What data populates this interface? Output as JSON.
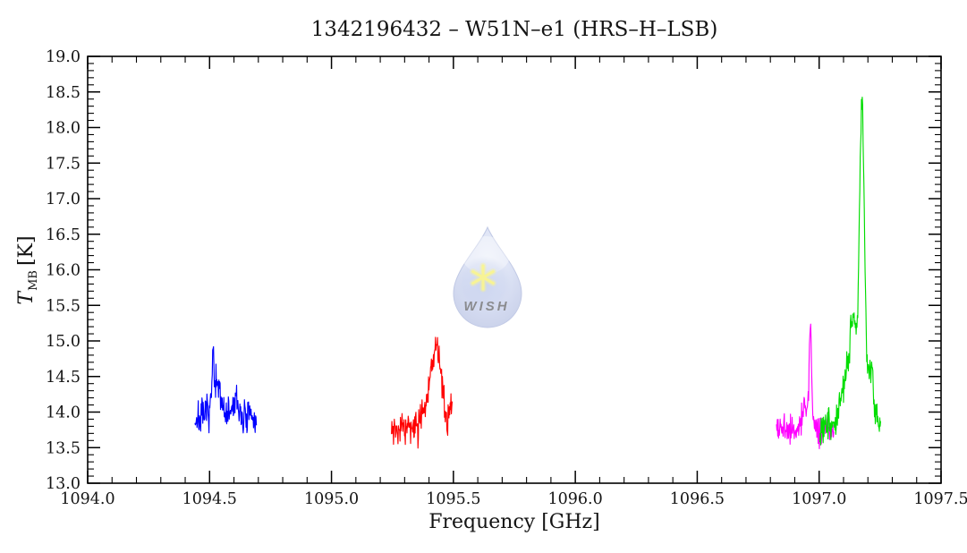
{
  "page": {
    "background": "#ffffff"
  },
  "chart_data": {
    "type": "line",
    "title": "1342196432 – W51N–e1 (HRS–H–LSB)",
    "xlabel": "Frequency [GHz]",
    "ylabel": {
      "symbol": "T",
      "subscript": "MB",
      "unit": "[K]"
    },
    "xlim": [
      1094.0,
      1097.5
    ],
    "ylim": [
      13.0,
      19.0
    ],
    "grid": false,
    "frame": true,
    "legend": "none",
    "axis_color": "#000000",
    "x_major_step": 0.5,
    "x_minor_step": 0.1,
    "y_major_step": 0.5,
    "y_minor_step": 0.1,
    "x_tick_values": [
      1094.0,
      1094.5,
      1095.0,
      1095.5,
      1096.0,
      1096.5,
      1097.0,
      1097.5
    ],
    "x_tick_labels": [
      "1094.0",
      "1094.5",
      "1095.0",
      "1095.5",
      "1096.0",
      "1096.5",
      "1097.0",
      "1097.5"
    ],
    "y_tick_values": [
      13.0,
      13.5,
      14.0,
      14.5,
      15.0,
      15.5,
      16.0,
      16.5,
      17.0,
      17.5,
      18.0,
      18.5,
      19.0
    ],
    "y_tick_labels": [
      "13.0",
      "13.5",
      "14.0",
      "14.5",
      "15.0",
      "15.5",
      "16.0",
      "16.5",
      "17.0",
      "17.5",
      "18.0",
      "18.5",
      "19.0"
    ],
    "series": [
      {
        "name": "blue",
        "color": "#0000ff",
        "x_start_ghz": 1094.44,
        "x_end_ghz": 1094.692,
        "n_points": 150,
        "baseline_k": 13.9,
        "noise_sigma_k": 0.125,
        "seed": 7,
        "peaks": [
          {
            "center_ghz": 1094.514,
            "amplitude_k": 0.62,
            "fwhm_ghz": 0.006
          },
          {
            "center_ghz": 1094.528,
            "amplitude_k": 0.45,
            "fwhm_ghz": 0.05
          },
          {
            "center_ghz": 1094.607,
            "amplitude_k": 0.22,
            "fwhm_ghz": 0.035
          }
        ]
      },
      {
        "name": "red",
        "color": "#ff0000",
        "x_start_ghz": 1095.246,
        "x_end_ghz": 1095.495,
        "n_points": 150,
        "baseline_k": 13.77,
        "noise_sigma_k": 0.115,
        "seed": 19,
        "peaks": [
          {
            "center_ghz": 1095.405,
            "amplitude_k": 0.3,
            "fwhm_ghz": 0.07
          },
          {
            "center_ghz": 1095.432,
            "amplitude_k": 0.93,
            "fwhm_ghz": 0.048
          },
          {
            "center_ghz": 1095.492,
            "amplitude_k": 0.3,
            "fwhm_ghz": 0.016
          }
        ]
      },
      {
        "name": "magenta",
        "color": "#ff00ff",
        "x_start_ghz": 1096.825,
        "x_end_ghz": 1097.06,
        "n_points": 140,
        "baseline_k": 13.77,
        "noise_sigma_k": 0.11,
        "seed": 5,
        "peaks": [
          {
            "center_ghz": 1096.942,
            "amplitude_k": 0.33,
            "fwhm_ghz": 0.025
          },
          {
            "center_ghz": 1096.964,
            "amplitude_k": 1.43,
            "fwhm_ghz": 0.012
          }
        ]
      },
      {
        "name": "green",
        "color": "#00dd00",
        "x_start_ghz": 1097.003,
        "x_end_ghz": 1097.252,
        "n_points": 150,
        "baseline_k": 13.72,
        "noise_sigma_k": 0.12,
        "seed": 3,
        "peaks": [
          {
            "center_ghz": 1097.15,
            "amplitude_k": 1.1,
            "fwhm_ghz": 0.105
          },
          {
            "center_ghz": 1097.14,
            "amplitude_k": 0.55,
            "fwhm_ghz": 0.03
          },
          {
            "center_ghz": 1097.176,
            "amplitude_k": 3.72,
            "fwhm_ghz": 0.022
          },
          {
            "center_ghz": 1097.213,
            "amplitude_k": 0.55,
            "fwhm_ghz": 0.018
          }
        ]
      }
    ]
  },
  "watermark": {
    "text": "WISH",
    "star_color": "#f7ef35",
    "text_color": "#f2ea3a",
    "drop_light": "#dde4f6",
    "drop_mid": "#c2cdee",
    "drop_dark": "#9dabd9"
  }
}
